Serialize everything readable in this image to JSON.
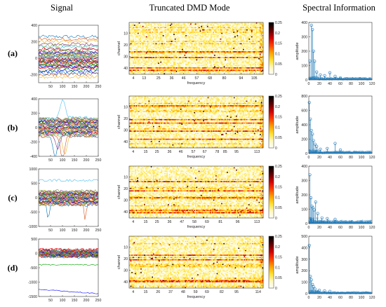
{
  "figure": {
    "headers": {
      "signal": "Signal",
      "dmd": "Truncated DMD Mode",
      "spectral": "Spectral Information"
    },
    "rows": [
      "(a)",
      "(b)",
      "(c)",
      "(d)"
    ]
  },
  "colors": {
    "colormap": [
      "#ffffff",
      "#fff8c0",
      "#ffe030",
      "#ffa000",
      "#ff4000",
      "#d00000",
      "#600000",
      "#000000"
    ],
    "stem": "#1f77b4",
    "signal_palette": [
      "#0072bd",
      "#d95319",
      "#edb120",
      "#7e2f8e",
      "#77ac30",
      "#4dbeee",
      "#a2142f",
      "#ff0000",
      "#00a000",
      "#0000ff"
    ]
  },
  "chart_data": [
    {
      "type": "line",
      "row": "(a)",
      "panel": "Signal",
      "x": [
        0,
        250
      ],
      "xticks": [
        50,
        100,
        150,
        200,
        250
      ],
      "ylim": [
        -300,
        400
      ],
      "yticks": [
        -200,
        0,
        200,
        400
      ],
      "series_count": 40,
      "series_baselines": [
        260,
        230,
        200,
        170,
        150,
        130,
        110,
        95,
        80,
        65,
        50,
        40,
        30,
        20,
        10,
        0,
        -10,
        -20,
        -30,
        -40,
        -50,
        -60,
        -70,
        -80,
        -90,
        -100,
        -110,
        -120,
        -140,
        -160,
        -180,
        -200,
        -230,
        60,
        35,
        15,
        -15,
        -45,
        -75,
        -105
      ]
    },
    {
      "type": "heatmap",
      "row": "(a)",
      "panel": "Truncated DMD Mode",
      "xlabel": "frequency",
      "ylabel": "channel",
      "xticks": [
        4,
        13,
        25,
        36,
        46,
        57,
        68,
        80,
        94,
        105
      ],
      "yticks": [
        10,
        20,
        30,
        40
      ],
      "rows": 45,
      "cols": 112,
      "clim": [
        0,
        0.25
      ],
      "colorbar_ticks": [
        0,
        0.05,
        0.1,
        0.15,
        0.2,
        0.25
      ],
      "hot_channels": [
        26,
        31,
        40,
        42
      ]
    },
    {
      "type": "scatter",
      "row": "(a)",
      "panel": "Spectral Information",
      "xlabel": "",
      "ylabel": "amplitude",
      "xlim": [
        0,
        120
      ],
      "ylim": [
        0,
        400
      ],
      "xticks": [
        0,
        20,
        40,
        60,
        80,
        100,
        120
      ],
      "yticks": [
        0,
        100,
        200,
        300,
        400
      ],
      "stems": [
        [
          2,
          130
        ],
        [
          5,
          380
        ],
        [
          7,
          350
        ],
        [
          9,
          200
        ],
        [
          11,
          130
        ],
        [
          15,
          55
        ],
        [
          22,
          35
        ],
        [
          30,
          30
        ],
        [
          40,
          50
        ],
        [
          50,
          25
        ],
        [
          60,
          15
        ]
      ],
      "tail_level": 10
    },
    {
      "type": "line",
      "row": "(b)",
      "panel": "Signal",
      "x": [
        0,
        250
      ],
      "xticks": [
        50,
        100,
        150,
        200,
        250
      ],
      "ylim": [
        -400,
        400
      ],
      "yticks": [
        -400,
        -200,
        0,
        200,
        400
      ],
      "series_count": 36,
      "dips": [
        [
          70,
          -300
        ],
        [
          100,
          -340
        ],
        [
          110,
          -250
        ],
        [
          80,
          -200
        ]
      ],
      "bump": [
        100,
        260
      ]
    },
    {
      "type": "heatmap",
      "row": "(b)",
      "panel": "Truncated DMD Mode",
      "xlabel": "frequency",
      "ylabel": "channel",
      "xticks": [
        4,
        15,
        25,
        36,
        46,
        57,
        67,
        78,
        85,
        95,
        113
      ],
      "yticks": [
        10,
        20,
        30,
        40
      ],
      "rows": 45,
      "cols": 118,
      "clim": [
        0,
        0.25
      ],
      "colorbar_ticks": [
        0,
        0.05,
        0.1,
        0.15,
        0.2,
        0.25
      ],
      "hot_channels": [
        9,
        21,
        24,
        31,
        38
      ]
    },
    {
      "type": "scatter",
      "row": "(b)",
      "panel": "Spectral Information",
      "xlabel": "",
      "ylabel": "amplitude",
      "xlim": [
        0,
        120
      ],
      "ylim": [
        0,
        800
      ],
      "xticks": [
        0,
        20,
        40,
        60,
        80,
        100,
        120
      ],
      "yticks": [
        0,
        200,
        400,
        600,
        800
      ],
      "stems": [
        [
          1,
          710
        ],
        [
          3,
          480
        ],
        [
          5,
          320
        ],
        [
          7,
          270
        ],
        [
          9,
          180
        ],
        [
          12,
          130
        ],
        [
          15,
          100
        ],
        [
          22,
          60
        ],
        [
          35,
          70
        ],
        [
          50,
          140
        ],
        [
          60,
          50
        ]
      ],
      "tail_level": 20
    },
    {
      "type": "line",
      "row": "(c)",
      "panel": "Signal",
      "x": [
        0,
        250
      ],
      "xticks": [
        50,
        100,
        150,
        200,
        250
      ],
      "ylim": [
        -1000,
        1000
      ],
      "yticks": [
        -1000,
        -500,
        0,
        500,
        1000
      ],
      "series_count": 36,
      "dips": [
        [
          40,
          -500
        ],
        [
          195,
          -550
        ]
      ],
      "top_line": 600
    },
    {
      "type": "heatmap",
      "row": "(c)",
      "panel": "Truncated DMD Mode",
      "xlabel": "frequency",
      "ylabel": "channel",
      "xticks": [
        4,
        15,
        25,
        36,
        47,
        58,
        69,
        81,
        96,
        113
      ],
      "yticks": [
        10,
        20,
        30,
        40
      ],
      "rows": 45,
      "cols": 118,
      "clim": [
        0,
        0.25
      ],
      "colorbar_ticks": [
        0,
        0.05,
        0.1,
        0.15,
        0.2,
        0.25
      ],
      "hot_channels": [
        14,
        22,
        28,
        39,
        41
      ]
    },
    {
      "type": "scatter",
      "row": "(c)",
      "panel": "Spectral Information",
      "xlabel": "",
      "ylabel": "amplitude",
      "xlim": [
        0,
        120
      ],
      "ylim": [
        0,
        400
      ],
      "xticks": [
        0,
        20,
        40,
        60,
        80,
        100,
        120
      ],
      "yticks": [
        0,
        100,
        200,
        300,
        400
      ],
      "stems": [
        [
          2,
          340
        ],
        [
          4,
          180
        ],
        [
          6,
          120
        ],
        [
          8,
          110
        ],
        [
          10,
          95
        ],
        [
          13,
          150
        ],
        [
          17,
          70
        ],
        [
          25,
          40
        ],
        [
          35,
          35
        ],
        [
          50,
          30
        ]
      ],
      "tail_level": 15
    },
    {
      "type": "line",
      "row": "(d)",
      "panel": "Signal",
      "x": [
        0,
        250
      ],
      "xticks": [
        50,
        100,
        150,
        200,
        250
      ],
      "ylim": [
        -1500,
        500
      ],
      "yticks": [
        -1500,
        -1000,
        -500,
        0,
        500
      ],
      "series_count": 40,
      "outlier": [
        [
          0,
          -1250
        ],
        [
          250,
          -1400
        ]
      ],
      "low_line": -400
    },
    {
      "type": "heatmap",
      "row": "(d)",
      "panel": "Truncated DMD Mode",
      "xlabel": "frequency",
      "ylabel": "channel",
      "xticks": [
        4,
        15,
        26,
        37,
        48,
        59,
        69,
        82,
        95,
        114
      ],
      "yticks": [
        10,
        20,
        30,
        40
      ],
      "rows": 45,
      "cols": 118,
      "clim": [
        0,
        0.25
      ],
      "colorbar_ticks": [
        0,
        0.05,
        0.1,
        0.15,
        0.2,
        0.25
      ],
      "hot_channels": [
        17,
        21,
        39,
        40
      ]
    },
    {
      "type": "scatter",
      "row": "(d)",
      "panel": "Spectral Information",
      "xlabel": "",
      "ylabel": "amplitude",
      "xlim": [
        0,
        120
      ],
      "ylim": [
        0,
        500
      ],
      "xticks": [
        0,
        20,
        40,
        60,
        80,
        100,
        120
      ],
      "yticks": [
        0,
        100,
        200,
        300,
        400,
        500
      ],
      "stems": [
        [
          1,
          420
        ],
        [
          3,
          150
        ],
        [
          5,
          120
        ],
        [
          7,
          80
        ],
        [
          9,
          60
        ],
        [
          12,
          40
        ],
        [
          20,
          30
        ],
        [
          30,
          25
        ],
        [
          40,
          20
        ]
      ],
      "tail_level": 10
    }
  ]
}
